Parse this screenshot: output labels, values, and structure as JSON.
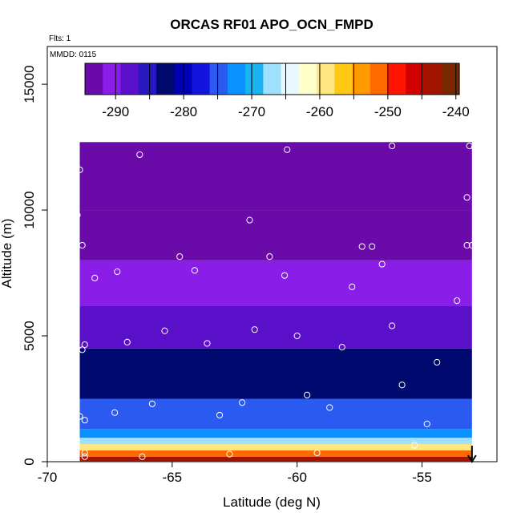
{
  "chart_data": {
    "type": "heatmap",
    "title": "ORCAS RF01 APO_OCN_FMPD",
    "annotations": {
      "flights": "Flts: 1",
      "date": "MMDD: 0115"
    },
    "xlabel": "Latitude (deg N)",
    "ylabel": "Altitude (m)",
    "xlim": [
      -70,
      -52
    ],
    "ylim": [
      0,
      16500
    ],
    "x_ticks": [
      -70,
      -65,
      -60,
      -55
    ],
    "y_ticks": [
      0,
      5000,
      10000,
      15000
    ],
    "colorbar": {
      "ticks": [
        -290,
        -280,
        -270,
        -260,
        -250,
        -240
      ],
      "range": [
        -294.5,
        -239.5
      ],
      "colors": [
        "#6a0aa8",
        "#8a1ee8",
        "#5a10c8",
        "#2818c0",
        "#000a6e",
        "#0000b4",
        "#1414e0",
        "#2a5af0",
        "#0a90ff",
        "#1ab4f0",
        "#9fe0ff",
        "#e8f8ff",
        "#ffffcc",
        "#ffe680",
        "#ffc814",
        "#ff9a00",
        "#ff6a00",
        "#ff1400",
        "#d20000",
        "#a01400",
        "#782800"
      ]
    },
    "grid": false,
    "legend_position": "top",
    "field_extent": {
      "lat_min": -68.7,
      "lat_max": -53.0,
      "alt_max": 12700
    },
    "layers": [
      {
        "alt": [
          0,
          200
        ],
        "value": -243
      },
      {
        "alt": [
          200,
          450
        ],
        "value": -250
      },
      {
        "alt": [
          450,
          700
        ],
        "value": -258
      },
      {
        "alt": [
          700,
          950
        ],
        "value": -266
      },
      {
        "alt": [
          950,
          1300
        ],
        "value": -271
      },
      {
        "alt": [
          1300,
          2500
        ],
        "value": -276
      },
      {
        "alt": [
          2500,
          4500
        ],
        "value": -284
      },
      {
        "alt": [
          4500,
          6200
        ],
        "value": -287
      },
      {
        "alt": [
          6200,
          8000
        ],
        "value": -291
      },
      {
        "alt": [
          8000,
          10000
        ],
        "value": -293
      },
      {
        "alt": [
          10000,
          12700
        ],
        "value": -292
      }
    ],
    "arrow": {
      "lat": -53.0,
      "label": "↓"
    },
    "observations": [
      {
        "lat": -68.5,
        "alt": 200
      },
      {
        "lat": -68.5,
        "alt": 350
      },
      {
        "lat": -66.2,
        "alt": 200
      },
      {
        "lat": -62.7,
        "alt": 300
      },
      {
        "lat": -59.2,
        "alt": 350
      },
      {
        "lat": -55.3,
        "alt": 650
      },
      {
        "lat": -68.7,
        "alt": 1800
      },
      {
        "lat": -68.5,
        "alt": 1650
      },
      {
        "lat": -67.3,
        "alt": 1950
      },
      {
        "lat": -65.8,
        "alt": 2300
      },
      {
        "lat": -63.1,
        "alt": 1850
      },
      {
        "lat": -62.2,
        "alt": 2350
      },
      {
        "lat": -59.6,
        "alt": 2650
      },
      {
        "lat": -58.7,
        "alt": 2150
      },
      {
        "lat": -55.8,
        "alt": 3050
      },
      {
        "lat": -54.8,
        "alt": 1500
      },
      {
        "lat": -54.4,
        "alt": 3950
      },
      {
        "lat": -68.5,
        "alt": 4650
      },
      {
        "lat": -68.6,
        "alt": 4450
      },
      {
        "lat": -66.8,
        "alt": 4750
      },
      {
        "lat": -65.3,
        "alt": 5200
      },
      {
        "lat": -63.6,
        "alt": 4700
      },
      {
        "lat": -61.7,
        "alt": 5250
      },
      {
        "lat": -60.0,
        "alt": 5000
      },
      {
        "lat": -58.2,
        "alt": 4550
      },
      {
        "lat": -56.2,
        "alt": 5400
      },
      {
        "lat": -53.6,
        "alt": 6400
      },
      {
        "lat": -68.9,
        "alt": 6150
      },
      {
        "lat": -68.1,
        "alt": 7300
      },
      {
        "lat": -67.2,
        "alt": 7550
      },
      {
        "lat": -64.7,
        "alt": 8150
      },
      {
        "lat": -64.1,
        "alt": 7600
      },
      {
        "lat": -61.1,
        "alt": 8150
      },
      {
        "lat": -60.5,
        "alt": 7400
      },
      {
        "lat": -57.8,
        "alt": 6950
      },
      {
        "lat": -57.4,
        "alt": 8550
      },
      {
        "lat": -57.0,
        "alt": 8550
      },
      {
        "lat": -56.6,
        "alt": 7850
      },
      {
        "lat": -53.2,
        "alt": 8600
      },
      {
        "lat": -53.0,
        "alt": 8600
      },
      {
        "lat": -68.6,
        "alt": 8600
      },
      {
        "lat": -68.8,
        "alt": 9800
      },
      {
        "lat": -61.9,
        "alt": 9600
      },
      {
        "lat": -53.2,
        "alt": 10500
      },
      {
        "lat": -52.8,
        "alt": 10100
      },
      {
        "lat": -68.7,
        "alt": 11600
      },
      {
        "lat": -66.3,
        "alt": 12200
      },
      {
        "lat": -60.4,
        "alt": 12400
      },
      {
        "lat": -56.2,
        "alt": 12550
      },
      {
        "lat": -53.1,
        "alt": 12550
      },
      {
        "lat": -52.9,
        "alt": 12500
      }
    ]
  }
}
